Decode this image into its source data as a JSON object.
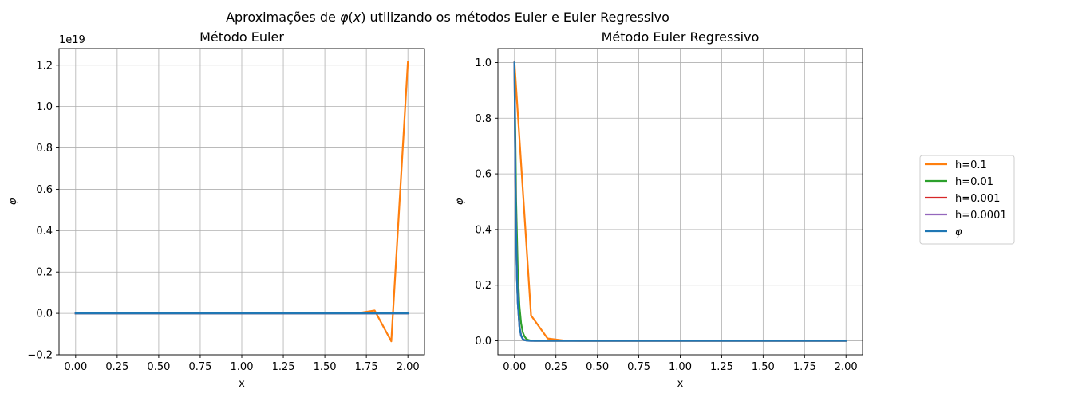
{
  "suptitle": {
    "before": "Aproximações de ",
    "math_var": "φ",
    "math_open": "(",
    "math_arg": "x",
    "math_close": ")",
    "after": " utilizando os métodos Euler e Euler Regressivo"
  },
  "legend": {
    "entries": [
      {
        "label": "h=0.1",
        "color": "#ff7f0e"
      },
      {
        "label": "h=0.01",
        "color": "#2ca02c"
      },
      {
        "label": "h=0.001",
        "color": "#d62728"
      },
      {
        "label": "h=0.0001",
        "color": "#9467bd"
      },
      {
        "label": "φ",
        "color": "#1f77b4",
        "italic": true
      }
    ]
  },
  "chart_data": [
    {
      "type": "line",
      "title": "Método Euler",
      "xlabel": "x",
      "ylabel": "φ",
      "y_offset_text": "1e19",
      "grid": true,
      "xlim": [
        -0.1,
        2.1
      ],
      "ylim": [
        -0.2,
        1.28
      ],
      "xticks": [
        0.0,
        0.25,
        0.5,
        0.75,
        1.0,
        1.25,
        1.5,
        1.75,
        2.0
      ],
      "xtick_labels": [
        "0.00",
        "0.25",
        "0.50",
        "0.75",
        "1.00",
        "1.25",
        "1.50",
        "1.75",
        "2.00"
      ],
      "yticks": [
        -0.2,
        0.0,
        0.2,
        0.4,
        0.6,
        0.8,
        1.0,
        1.2
      ],
      "ytick_labels": [
        "−0.2",
        "0.0",
        "0.2",
        "0.4",
        "0.6",
        "0.8",
        "1.0",
        "1.2"
      ],
      "series": [
        {
          "name": "h=0.1",
          "color": "#ff7f0e",
          "x": [
            0.0,
            0.1,
            0.2,
            0.3,
            0.4,
            0.5,
            0.6,
            0.7,
            0.8,
            0.9,
            1.0,
            1.1,
            1.2,
            1.3,
            1.4,
            1.5,
            1.6,
            1.7,
            1.8,
            1.9,
            2.0
          ],
          "y": [
            0,
            0,
            0,
            0,
            0,
            0,
            0,
            0,
            0,
            0,
            0,
            0,
            0,
            0,
            0,
            0,
            0,
            0.001,
            0.014,
            -0.135,
            1.215
          ]
        },
        {
          "name": "h=0.01",
          "color": "#2ca02c",
          "x": [
            0.0,
            2.0
          ],
          "y": [
            0.0,
            0.0
          ]
        },
        {
          "name": "h=0.001",
          "color": "#d62728",
          "x": [
            0.0,
            2.0
          ],
          "y": [
            0.0,
            0.0
          ]
        },
        {
          "name": "h=0.0001",
          "color": "#9467bd",
          "x": [
            0.0,
            2.0
          ],
          "y": [
            0.0,
            0.0
          ]
        },
        {
          "name": "φ",
          "color": "#1f77b4",
          "x": [
            0.0,
            2.0
          ],
          "y": [
            0.0,
            0.0
          ]
        }
      ]
    },
    {
      "type": "line",
      "title": "Método Euler Regressivo",
      "xlabel": "x",
      "ylabel": "φ",
      "grid": true,
      "xlim": [
        -0.1,
        2.1
      ],
      "ylim": [
        -0.05,
        1.05
      ],
      "xticks": [
        0.0,
        0.25,
        0.5,
        0.75,
        1.0,
        1.25,
        1.5,
        1.75,
        2.0
      ],
      "xtick_labels": [
        "0.00",
        "0.25",
        "0.50",
        "0.75",
        "1.00",
        "1.25",
        "1.50",
        "1.75",
        "2.00"
      ],
      "yticks": [
        0.0,
        0.2,
        0.4,
        0.6,
        0.8,
        1.0
      ],
      "ytick_labels": [
        "0.0",
        "0.2",
        "0.4",
        "0.6",
        "0.8",
        "1.0"
      ],
      "series": [
        {
          "name": "h=0.1",
          "color": "#ff7f0e",
          "x": [
            0.0,
            0.1,
            0.2,
            0.3,
            0.4,
            0.5,
            1.0,
            1.5,
            2.0
          ],
          "y": [
            1.0,
            0.091,
            0.0083,
            0.0008,
            0.0001,
            0.0,
            0.0,
            0.0,
            0.0
          ]
        },
        {
          "name": "h=0.01",
          "color": "#2ca02c",
          "x": [
            0.0,
            0.01,
            0.02,
            0.03,
            0.04,
            0.05,
            0.06,
            0.07,
            0.08,
            0.09,
            0.1,
            0.12,
            0.15,
            0.2,
            0.3,
            2.0
          ],
          "y": [
            1.0,
            0.5,
            0.25,
            0.125,
            0.0625,
            0.031,
            0.016,
            0.008,
            0.004,
            0.002,
            0.001,
            0.0002,
            0.0,
            0.0,
            0.0,
            0.0
          ]
        },
        {
          "name": "h=0.001",
          "color": "#d62728",
          "x": [
            0.0,
            0.005,
            0.01,
            0.015,
            0.02,
            0.03,
            0.04,
            0.05,
            0.06,
            0.08,
            0.1,
            0.15,
            0.2,
            2.0
          ],
          "y": [
            1.0,
            0.61,
            0.372,
            0.227,
            0.138,
            0.051,
            0.019,
            0.007,
            0.0026,
            0.0004,
            0.0,
            0.0,
            0.0,
            0.0
          ]
        },
        {
          "name": "h=0.0001",
          "color": "#9467bd",
          "x": [
            0.0,
            0.005,
            0.01,
            0.015,
            0.02,
            0.03,
            0.04,
            0.05,
            0.06,
            0.08,
            0.1,
            0.15,
            0.2,
            2.0
          ],
          "y": [
            1.0,
            0.607,
            0.368,
            0.223,
            0.135,
            0.05,
            0.018,
            0.0067,
            0.0025,
            0.0003,
            0.0,
            0.0,
            0.0,
            0.0
          ]
        },
        {
          "name": "φ",
          "color": "#1f77b4",
          "x": [
            0.0,
            0.005,
            0.01,
            0.015,
            0.02,
            0.03,
            0.04,
            0.05,
            0.06,
            0.08,
            0.1,
            0.15,
            0.2,
            2.0
          ],
          "y": [
            1.0,
            0.607,
            0.368,
            0.223,
            0.135,
            0.05,
            0.018,
            0.0067,
            0.0025,
            0.0003,
            0.0,
            0.0,
            0.0,
            0.0
          ]
        }
      ]
    }
  ]
}
